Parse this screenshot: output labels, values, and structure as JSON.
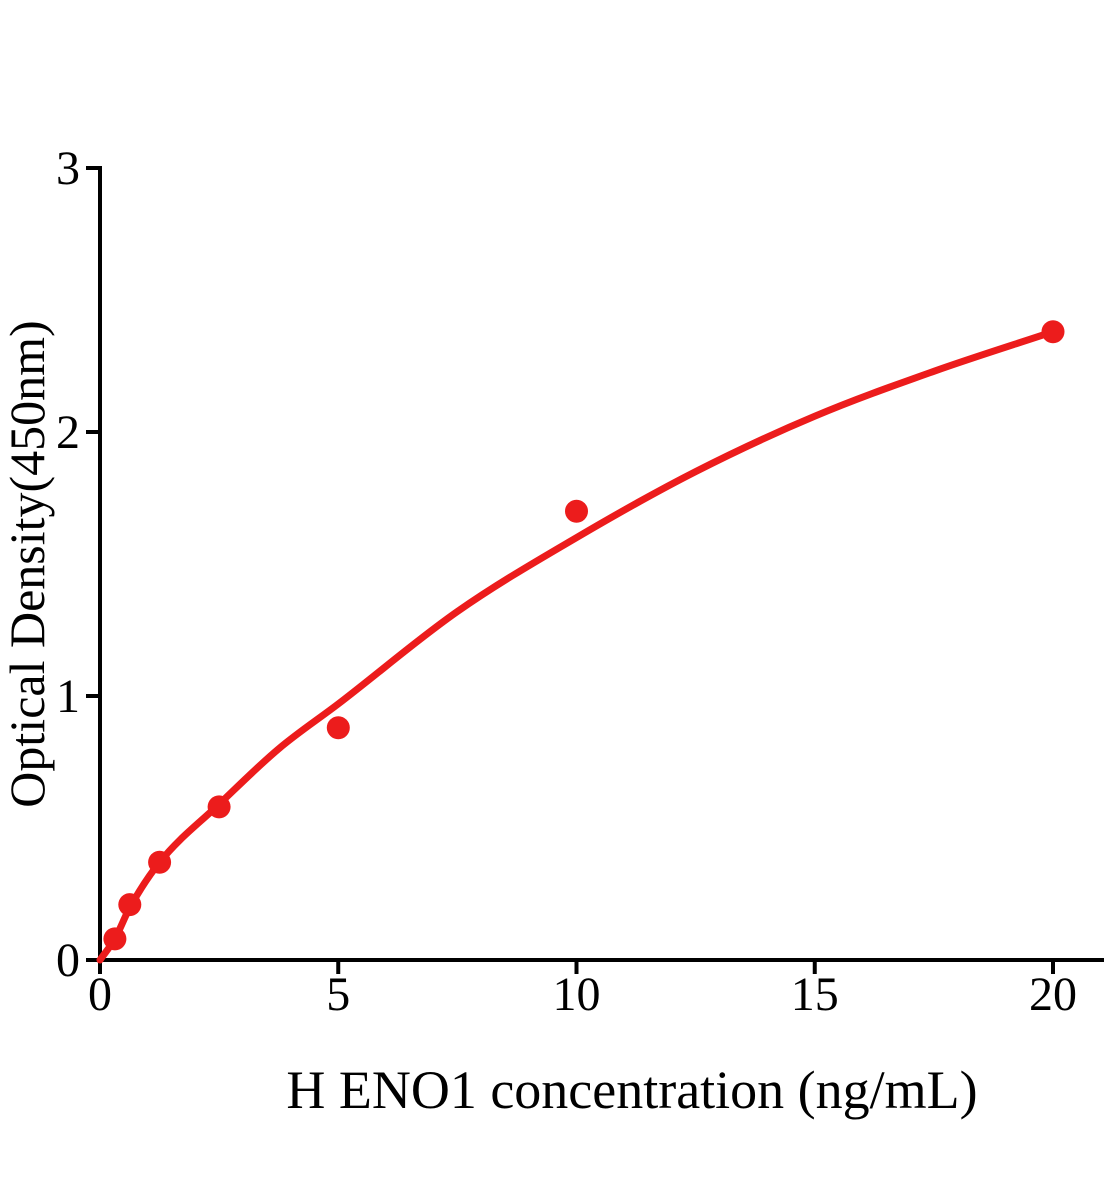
{
  "figure": {
    "background": "#ffffff"
  },
  "chart_data": {
    "type": "scatter",
    "title": "",
    "xlabel": "H ENO1 concentration (ng/mL)",
    "ylabel": "Optical Density(450nm)",
    "x_ticks": [
      "0",
      "5",
      "10",
      "15",
      "20"
    ],
    "x_tick_values": [
      0,
      5,
      10,
      15,
      20
    ],
    "y_ticks": [
      "0",
      "1",
      "2",
      "3"
    ],
    "y_tick_values": [
      0,
      1,
      2,
      3
    ],
    "xlim": [
      0,
      21
    ],
    "ylim": [
      0,
      3
    ],
    "grid": false,
    "legend": null,
    "marker_color": "#EC1C1C",
    "line_color": "#EC1C1C",
    "axis_color": "#000000",
    "points": {
      "x": [
        0.3125,
        0.625,
        1.25,
        2.5,
        5,
        10,
        20
      ],
      "y": [
        0.08,
        0.21,
        0.37,
        0.58,
        0.88,
        1.7,
        2.38
      ]
    },
    "fit_curve": {
      "x": [
        0,
        0.31,
        0.63,
        1.25,
        2.5,
        3.75,
        5,
        7.5,
        10,
        12.5,
        15,
        17.5,
        20
      ],
      "y": [
        0.0,
        0.08,
        0.2,
        0.37,
        0.59,
        0.8,
        0.97,
        1.32,
        1.6,
        1.85,
        2.06,
        2.23,
        2.38
      ]
    }
  }
}
